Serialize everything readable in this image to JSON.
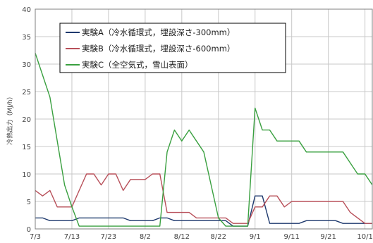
{
  "chart_data": {
    "type": "line",
    "title": "",
    "ylabel": "冷熱出力（MJ/h）",
    "xlabel": "",
    "ylim": [
      0,
      40
    ],
    "y_ticks": [
      0,
      5,
      10,
      15,
      20,
      25,
      30,
      35,
      40
    ],
    "x_domain_days": [
      0,
      92
    ],
    "x_tick_labels": [
      "7/3",
      "7/13",
      "7/23",
      "8/2",
      "8/12",
      "8/22",
      "9/1",
      "9/11",
      "9/21",
      "10/1"
    ],
    "x_tick_days": [
      0,
      10,
      20,
      30,
      40,
      50,
      60,
      70,
      80,
      90
    ],
    "grid": true,
    "legend_position": "top-left",
    "series": [
      {
        "name": "実験A（冷水循環式，埋設深さ-300mm）",
        "color": "#1f3a6e",
        "x": [
          0,
          2,
          4,
          6,
          8,
          10,
          12,
          14,
          16,
          18,
          20,
          22,
          24,
          26,
          28,
          30,
          32,
          34,
          36,
          38,
          40,
          42,
          44,
          46,
          48,
          50,
          52,
          54,
          56,
          58,
          60,
          62,
          64,
          66,
          68,
          70,
          72,
          74,
          76,
          78,
          80,
          82,
          84,
          86,
          88,
          90,
          92
        ],
        "y": [
          2,
          2,
          1.5,
          1.5,
          1.5,
          1.5,
          2,
          2,
          2,
          2,
          2,
          2,
          2,
          1.5,
          1.5,
          1.5,
          1.5,
          2,
          2,
          1.5,
          1.5,
          1.5,
          1.5,
          1.5,
          1.5,
          1.5,
          1.5,
          0.5,
          0.5,
          0.5,
          6,
          6,
          1,
          1,
          1,
          1,
          1,
          1.5,
          1.5,
          1.5,
          1.5,
          1.5,
          1,
          1,
          1,
          1,
          1
        ]
      },
      {
        "name": "実験B（冷水循環式，埋設深さ-600mm）",
        "color": "#b8505a",
        "x": [
          0,
          2,
          4,
          6,
          8,
          10,
          12,
          14,
          16,
          18,
          20,
          22,
          24,
          26,
          28,
          30,
          32,
          34,
          36,
          38,
          40,
          42,
          44,
          46,
          48,
          50,
          52,
          54,
          56,
          58,
          60,
          62,
          64,
          66,
          68,
          70,
          72,
          74,
          76,
          78,
          80,
          82,
          84,
          86,
          88,
          90,
          92
        ],
        "y": [
          7,
          6,
          7,
          4,
          4,
          4,
          7,
          10,
          10,
          8,
          10,
          10,
          7,
          9,
          9,
          9,
          10,
          10,
          3,
          3,
          3,
          3,
          2,
          2,
          2,
          2,
          2,
          1,
          1,
          1,
          4,
          4,
          6,
          6,
          4,
          5,
          5,
          5,
          5,
          5,
          5,
          5,
          5,
          3,
          2,
          1,
          1
        ]
      },
      {
        "name": "実験C（全空気式，雪山表面）",
        "color": "#3aa040",
        "x": [
          0,
          2,
          4,
          6,
          8,
          10,
          12,
          14,
          16,
          18,
          20,
          22,
          24,
          26,
          28,
          30,
          32,
          34,
          36,
          38,
          40,
          42,
          44,
          46,
          48,
          50,
          52,
          54,
          56,
          58,
          60,
          62,
          64,
          66,
          68,
          70,
          72,
          74,
          76,
          78,
          80,
          82,
          84,
          86,
          88,
          90,
          92
        ],
        "y": [
          32,
          28,
          24,
          16,
          8,
          4,
          0.5,
          0.5,
          0.5,
          0.5,
          0.5,
          0.5,
          0.5,
          0.5,
          0.5,
          0.5,
          0.5,
          0.5,
          14,
          18,
          16,
          18,
          16,
          14,
          8,
          2,
          0.5,
          0.5,
          0.5,
          0.5,
          22,
          18,
          18,
          16,
          16,
          16,
          16,
          14,
          14,
          14,
          14,
          14,
          14,
          12,
          10,
          10,
          8
        ]
      }
    ]
  }
}
